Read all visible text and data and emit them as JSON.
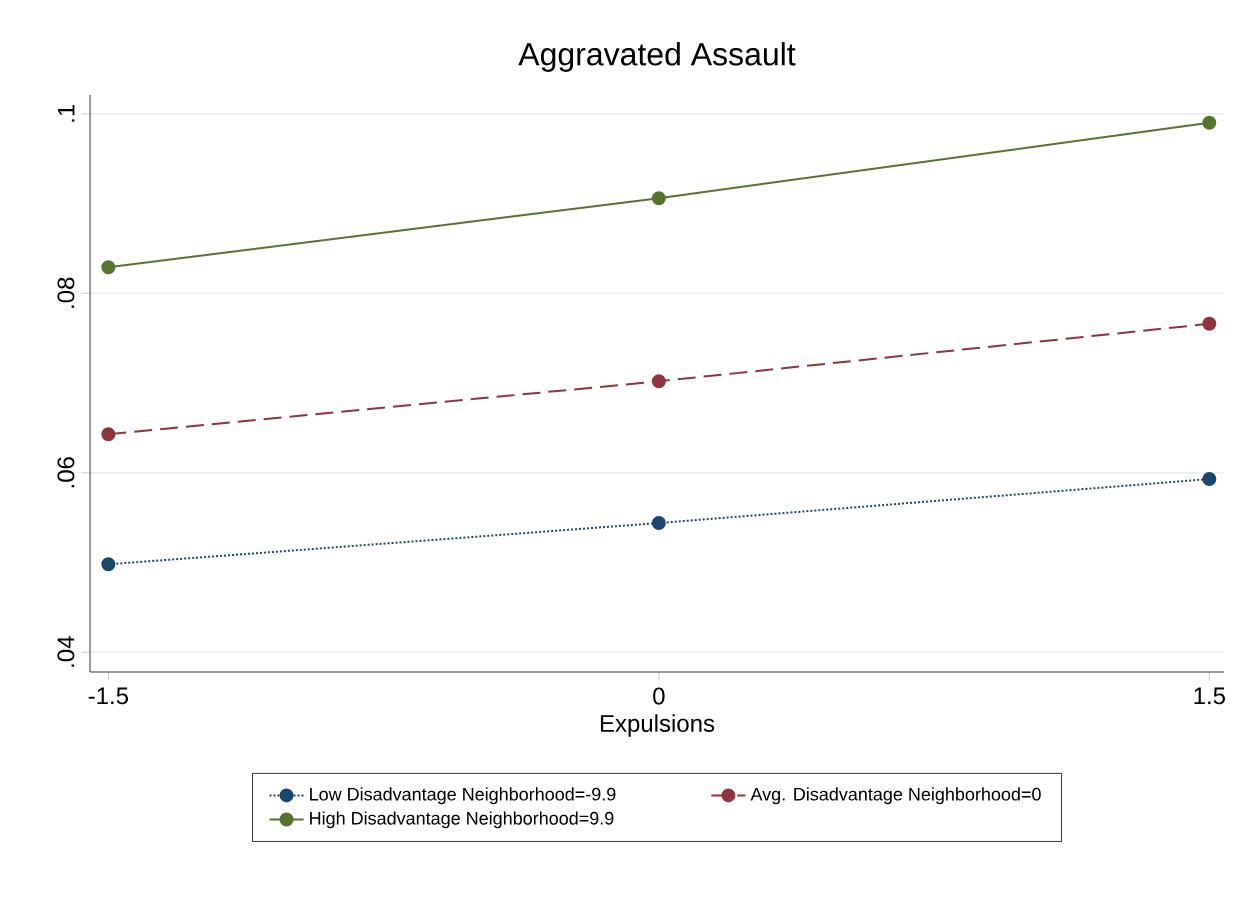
{
  "chart_data": {
    "type": "line",
    "title": "Aggravated Assault",
    "xlabel": "Expulsions",
    "x": [
      -1.5,
      0,
      1.5
    ],
    "series": [
      {
        "name": "Low Disadvantage Neighborhood=-9.9",
        "color": "#1a476f",
        "line_style": "dotted",
        "values": [
          0.0498,
          0.0544,
          0.0593
        ]
      },
      {
        "name": "Avg. Disadvantage Neighborhood=0",
        "color": "#90353b",
        "line_style": "dashed",
        "values": [
          0.0643,
          0.0702,
          0.0766
        ]
      },
      {
        "name": "High Disadvantage Neighborhood=9.9",
        "color": "#55752f",
        "line_style": "solid",
        "values": [
          0.0829,
          0.0906,
          0.099
        ]
      }
    ],
    "xlim": [
      -1.55,
      1.54
    ],
    "ylim": [
      0.0378,
      0.1021
    ],
    "xticks": [
      -1.5,
      0,
      1.5
    ],
    "yticks": [
      {
        "value": 0.04,
        "label": ".04"
      },
      {
        "value": 0.06,
        "label": ".06"
      },
      {
        "value": 0.08,
        "label": ".08"
      },
      {
        "value": 0.1,
        "label": ".1"
      }
    ],
    "grid": "y",
    "legend": "bottom",
    "marker": "circle"
  }
}
